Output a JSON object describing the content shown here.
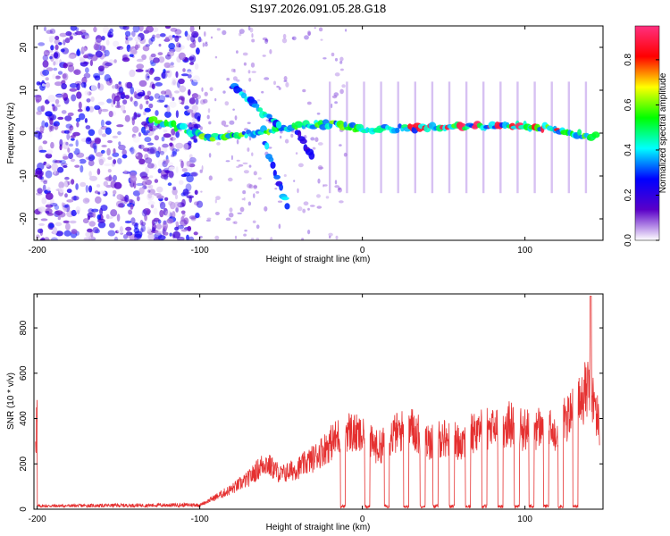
{
  "title": "S197.2026.091.05.28.G18",
  "chart_data": [
    {
      "type": "heatmap",
      "xlabel": "Height of straight line (km)",
      "ylabel": "Frequency (Hz)",
      "xlim": [
        -202,
        148
      ],
      "ylim": [
        -25,
        25
      ],
      "xticks": [
        -200,
        -100,
        0,
        100
      ],
      "yticks": [
        -20,
        -10,
        0,
        10,
        20
      ],
      "colorbar": {
        "label": "Normalized spectral amplitude",
        "range": [
          0,
          0.95
        ],
        "ticks": [
          0.0,
          0.2,
          0.4,
          0.6,
          0.8
        ],
        "ticklabels": [
          "0.0",
          "0.2",
          "0.4",
          "0.6",
          "0.8"
        ],
        "colors": [
          "#ffffff",
          "#5a00c8",
          "#0000ff",
          "#00ffff",
          "#00ff00",
          "#ffff00",
          "#ff0000",
          "#ff3080"
        ]
      },
      "tracks": [
        {
          "name": "noise-region",
          "x_range": [
            -200,
            -100
          ],
          "y_range": [
            -25,
            25
          ],
          "level": 0.25
        },
        {
          "name": "main-signal",
          "points": [
            [
              -130,
              3
            ],
            [
              -110,
              1
            ],
            [
              -95,
              -1
            ],
            [
              -70,
              0
            ],
            [
              -50,
              1
            ],
            [
              -30,
              2
            ],
            [
              -15,
              2
            ],
            [
              0,
              1
            ],
            [
              20,
              1
            ],
            [
              40,
              1.5
            ],
            [
              60,
              1.5
            ],
            [
              80,
              1.5
            ],
            [
              100,
              1.5
            ],
            [
              120,
              1
            ],
            [
              135,
              -0.5
            ],
            [
              145,
              -1
            ]
          ],
          "level": 0.6
        },
        {
          "name": "upper-branch",
          "points": [
            [
              -80,
              11
            ],
            [
              -70,
              8
            ],
            [
              -60,
              4
            ],
            [
              -50,
              2
            ]
          ],
          "level": 0.45
        },
        {
          "name": "lower-branch",
          "points": [
            [
              -60,
              -2
            ],
            [
              -55,
              -8
            ],
            [
              -50,
              -13
            ],
            [
              -45,
              -18
            ]
          ],
          "level": 0.4
        },
        {
          "name": "secondary-branch",
          "points": [
            [
              -40,
              0
            ],
            [
              -35,
              -3
            ],
            [
              -30,
              -6
            ]
          ],
          "level": 0.3
        }
      ]
    },
    {
      "type": "line",
      "xlabel": "Height of straight line (km)",
      "ylabel": "SNR (10 * v/v)",
      "xlim": [
        -202,
        148
      ],
      "ylim": [
        0,
        950
      ],
      "xticks": [
        -200,
        -100,
        0,
        100
      ],
      "yticks": [
        0,
        200,
        400,
        600,
        800
      ],
      "line_color": "#e53030",
      "segments_x": [
        -200,
        -100,
        -90,
        -80,
        -70,
        -60,
        -50,
        -40,
        -30,
        -20,
        -10,
        0,
        10,
        20,
        30,
        40,
        50,
        60,
        70,
        80,
        90,
        100,
        110,
        120,
        130,
        140,
        146
      ],
      "segments_y": [
        15,
        20,
        60,
        100,
        150,
        230,
        170,
        200,
        250,
        320,
        390,
        350,
        300,
        370,
        400,
        330,
        350,
        330,
        390,
        390,
        420,
        390,
        400,
        380,
        490,
        600,
        400
      ],
      "dropouts": [
        -12,
        3,
        15,
        27,
        37,
        45,
        55,
        65,
        75,
        85,
        95,
        104,
        113,
        122,
        131
      ]
    }
  ],
  "tick_text": {
    "top_x": [
      "-200",
      "-100",
      "0",
      "100"
    ],
    "top_y": [
      "-20",
      "-10",
      "0",
      "10",
      "20"
    ],
    "bottom_x": [
      "-200",
      "-100",
      "0",
      "100"
    ],
    "bottom_y": [
      "0",
      "200",
      "400",
      "600",
      "800"
    ],
    "cbar": [
      "0.0",
      "0.2",
      "0.4",
      "0.6",
      "0.8"
    ]
  }
}
